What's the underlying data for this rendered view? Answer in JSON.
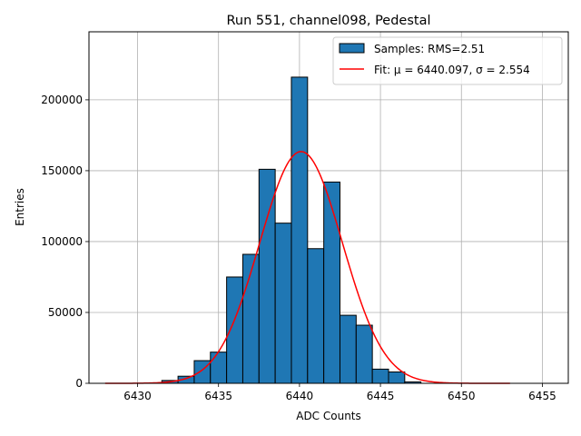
{
  "chart_data": {
    "type": "bar",
    "title": "Run 551, channel098, Pedestal",
    "xlabel": "ADC Counts",
    "ylabel": "Entries",
    "xlim": [
      6427.0,
      6456.6
    ],
    "ylim": [
      0,
      248000
    ],
    "grid": true,
    "legend_position": "top-right",
    "x_ticks": [
      6430,
      6435,
      6440,
      6445,
      6450,
      6455
    ],
    "y_ticks": [
      0,
      50000,
      100000,
      150000,
      200000
    ],
    "bin_width": 1,
    "bins": [
      {
        "x": 6432.0,
        "count": 2000
      },
      {
        "x": 6433.0,
        "count": 5000
      },
      {
        "x": 6434.0,
        "count": 16000
      },
      {
        "x": 6435.0,
        "count": 22000
      },
      {
        "x": 6436.0,
        "count": 75000
      },
      {
        "x": 6437.0,
        "count": 91000
      },
      {
        "x": 6438.0,
        "count": 151000
      },
      {
        "x": 6439.0,
        "count": 113000
      },
      {
        "x": 6440.0,
        "count": 216000
      },
      {
        "x": 6441.0,
        "count": 95000
      },
      {
        "x": 6442.0,
        "count": 142000
      },
      {
        "x": 6443.0,
        "count": 48000
      },
      {
        "x": 6444.0,
        "count": 41000
      },
      {
        "x": 6445.0,
        "count": 10000
      },
      {
        "x": 6446.0,
        "count": 8000
      },
      {
        "x": 6447.0,
        "count": 1000
      }
    ],
    "fit": {
      "mu": 6440.097,
      "sigma": 2.554,
      "amplitude": 163500,
      "x_range": [
        6428.0,
        6453.0
      ]
    },
    "series": [
      {
        "name": "Samples: RMS=2.51",
        "kind": "histogram",
        "color": "#1f77b4"
      },
      {
        "name": "Fit: μ = 6440.097, σ = 2.554",
        "kind": "line",
        "color": "#ff0000"
      }
    ]
  }
}
